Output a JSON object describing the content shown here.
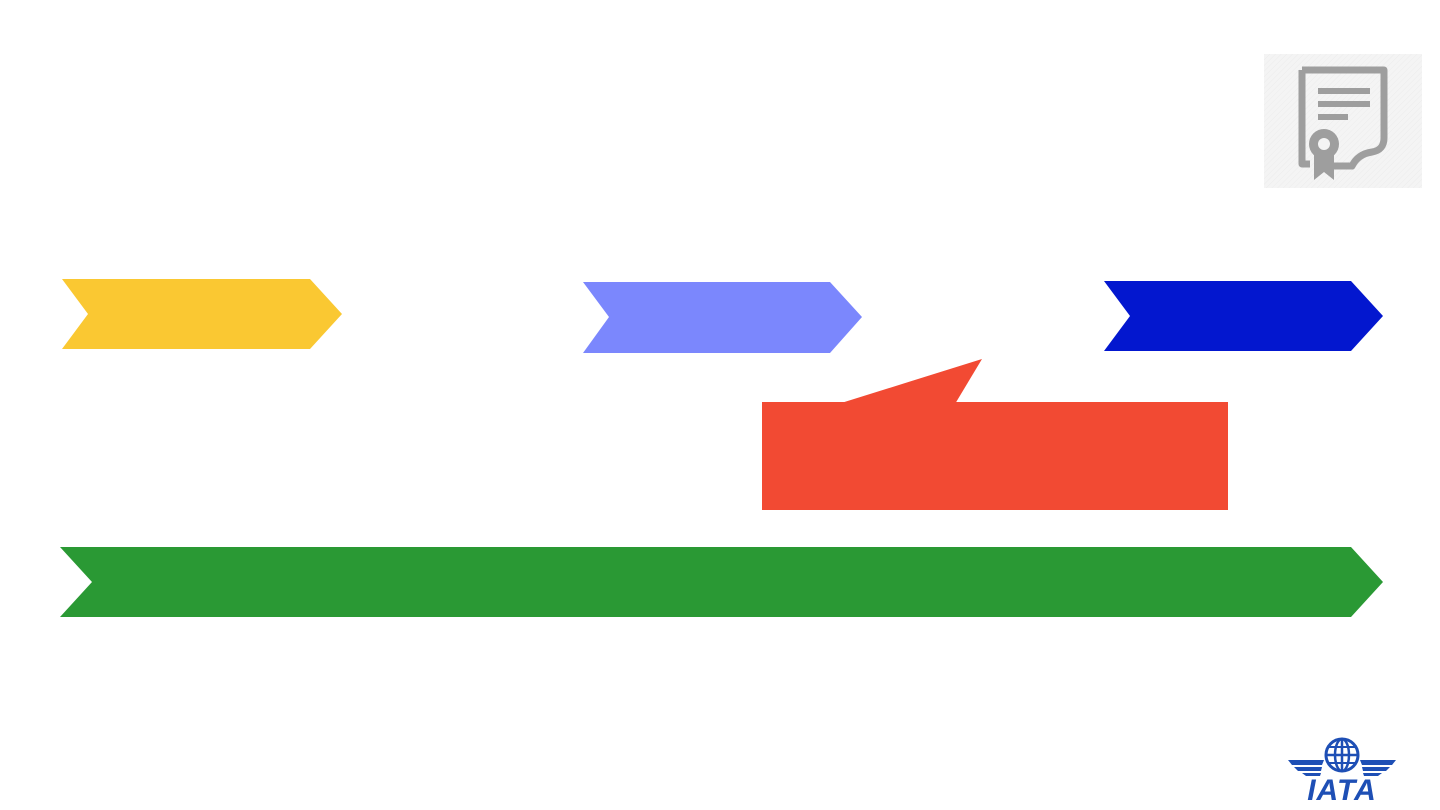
{
  "colors": {
    "stage_1": "#FAC832",
    "stage_2": "#7B87FD",
    "stage_3": "#0317CF",
    "callout": "#F24A33",
    "timeline": "#2A9934",
    "certificate_icon": "#9E9E9E",
    "certificate_bg": "#F4F4F4",
    "logo": "#1E4FB5"
  },
  "icons": {
    "certificate": "certificate-icon",
    "logo": "iata-globe-wings-logo"
  },
  "logo": {
    "text": "IATA"
  }
}
